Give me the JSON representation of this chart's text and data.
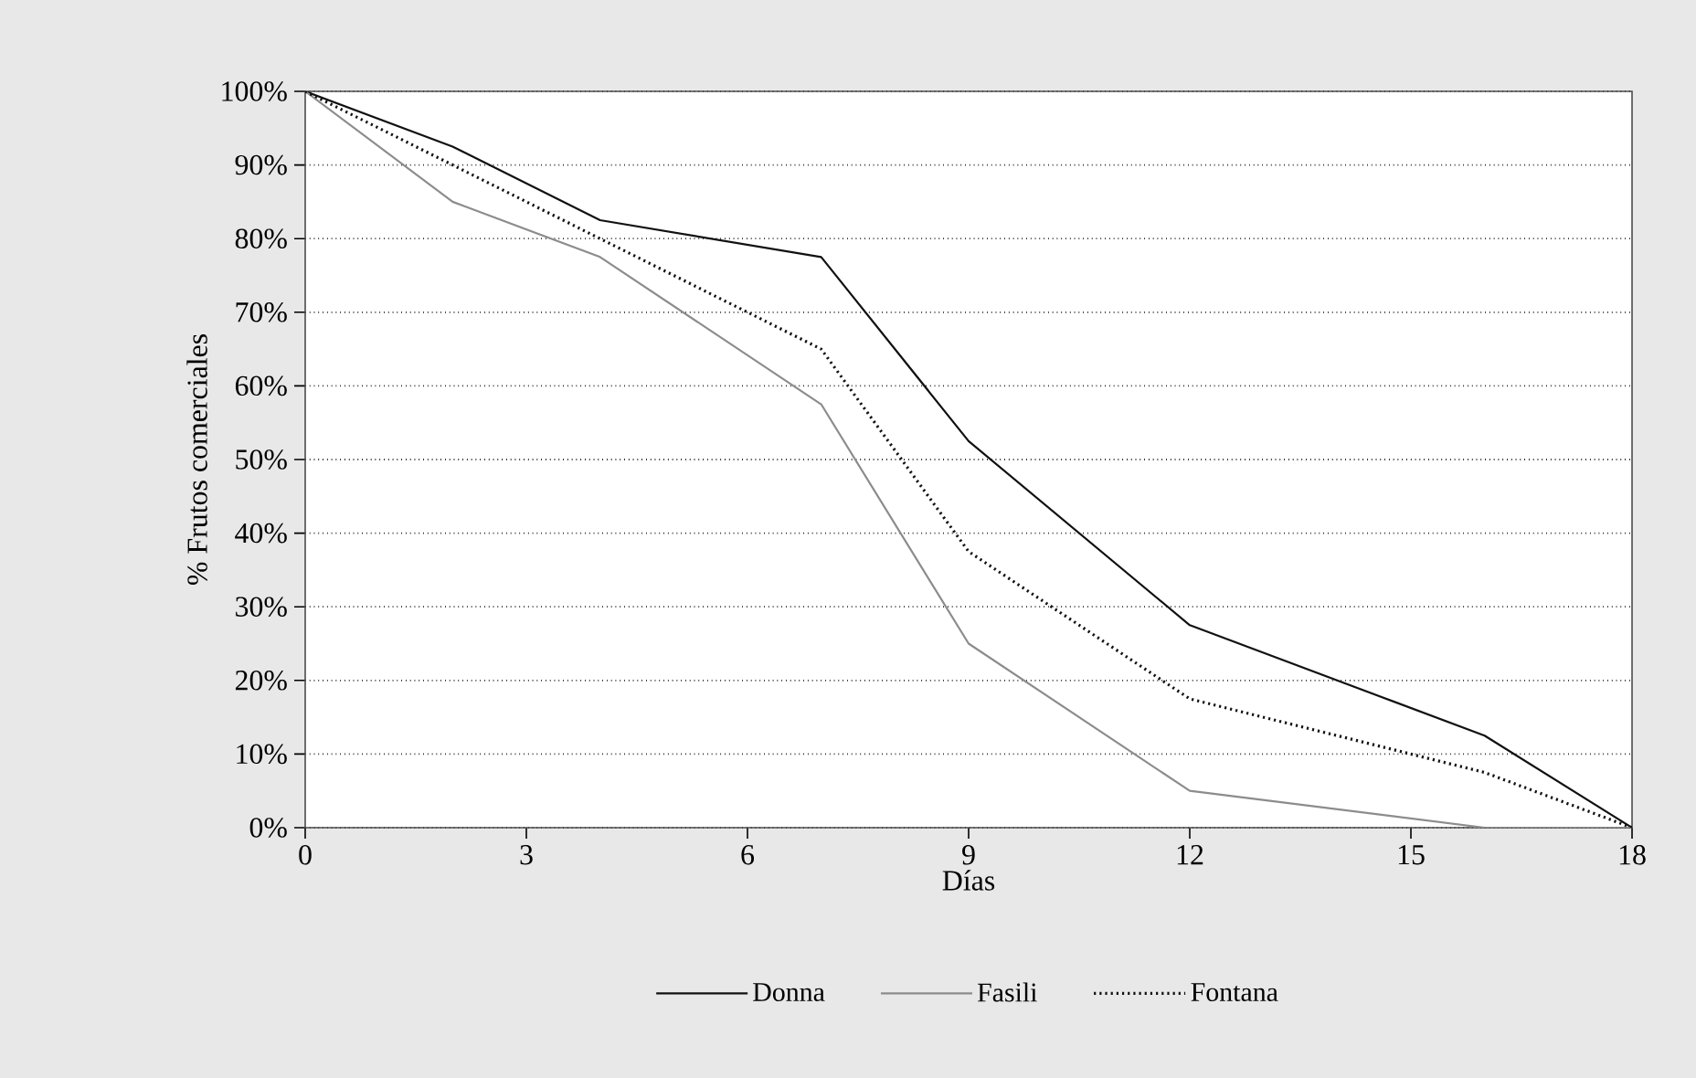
{
  "chart_data": {
    "type": "line",
    "xlabel": "Días",
    "ylabel": "% Frutos comerciales",
    "xlim": [
      0,
      18
    ],
    "xticks": [
      0,
      3,
      6,
      9,
      12,
      15,
      18
    ],
    "ylim": [
      0,
      100
    ],
    "yticks": [
      {
        "value": 0,
        "label": "0%"
      },
      {
        "value": 10,
        "label": "10%"
      },
      {
        "value": 20,
        "label": "20%"
      },
      {
        "value": 30,
        "label": "30%"
      },
      {
        "value": 40,
        "label": "40%"
      },
      {
        "value": 50,
        "label": "50%"
      },
      {
        "value": 60,
        "label": "60%"
      },
      {
        "value": 70,
        "label": "70%"
      },
      {
        "value": 80,
        "label": "80%"
      },
      {
        "value": 90,
        "label": "90%"
      },
      {
        "value": 100,
        "label": "100%"
      }
    ],
    "grid": "y",
    "legend": "bottom",
    "marker": "none",
    "series": [
      {
        "name": "Donna",
        "color": "#111111",
        "line_style": "solid",
        "x": [
          0,
          2,
          4,
          7,
          9,
          12,
          16,
          18
        ],
        "values": [
          100,
          92.5,
          82.5,
          77.5,
          52.5,
          27.5,
          12.5,
          0
        ]
      },
      {
        "name": "Fasili",
        "color": "#8c8c8c",
        "line_style": "solid",
        "x": [
          0,
          2,
          4,
          7,
          9,
          12,
          16,
          18
        ],
        "values": [
          100,
          85,
          77.5,
          57.5,
          25,
          5,
          0,
          0
        ]
      },
      {
        "name": "Fontana",
        "color": "#111111",
        "line_style": "dotted",
        "x": [
          0,
          2,
          4,
          7,
          9,
          12,
          16,
          18
        ],
        "values": [
          100,
          90,
          80,
          65,
          37.5,
          17.5,
          7.5,
          0
        ]
      }
    ]
  }
}
